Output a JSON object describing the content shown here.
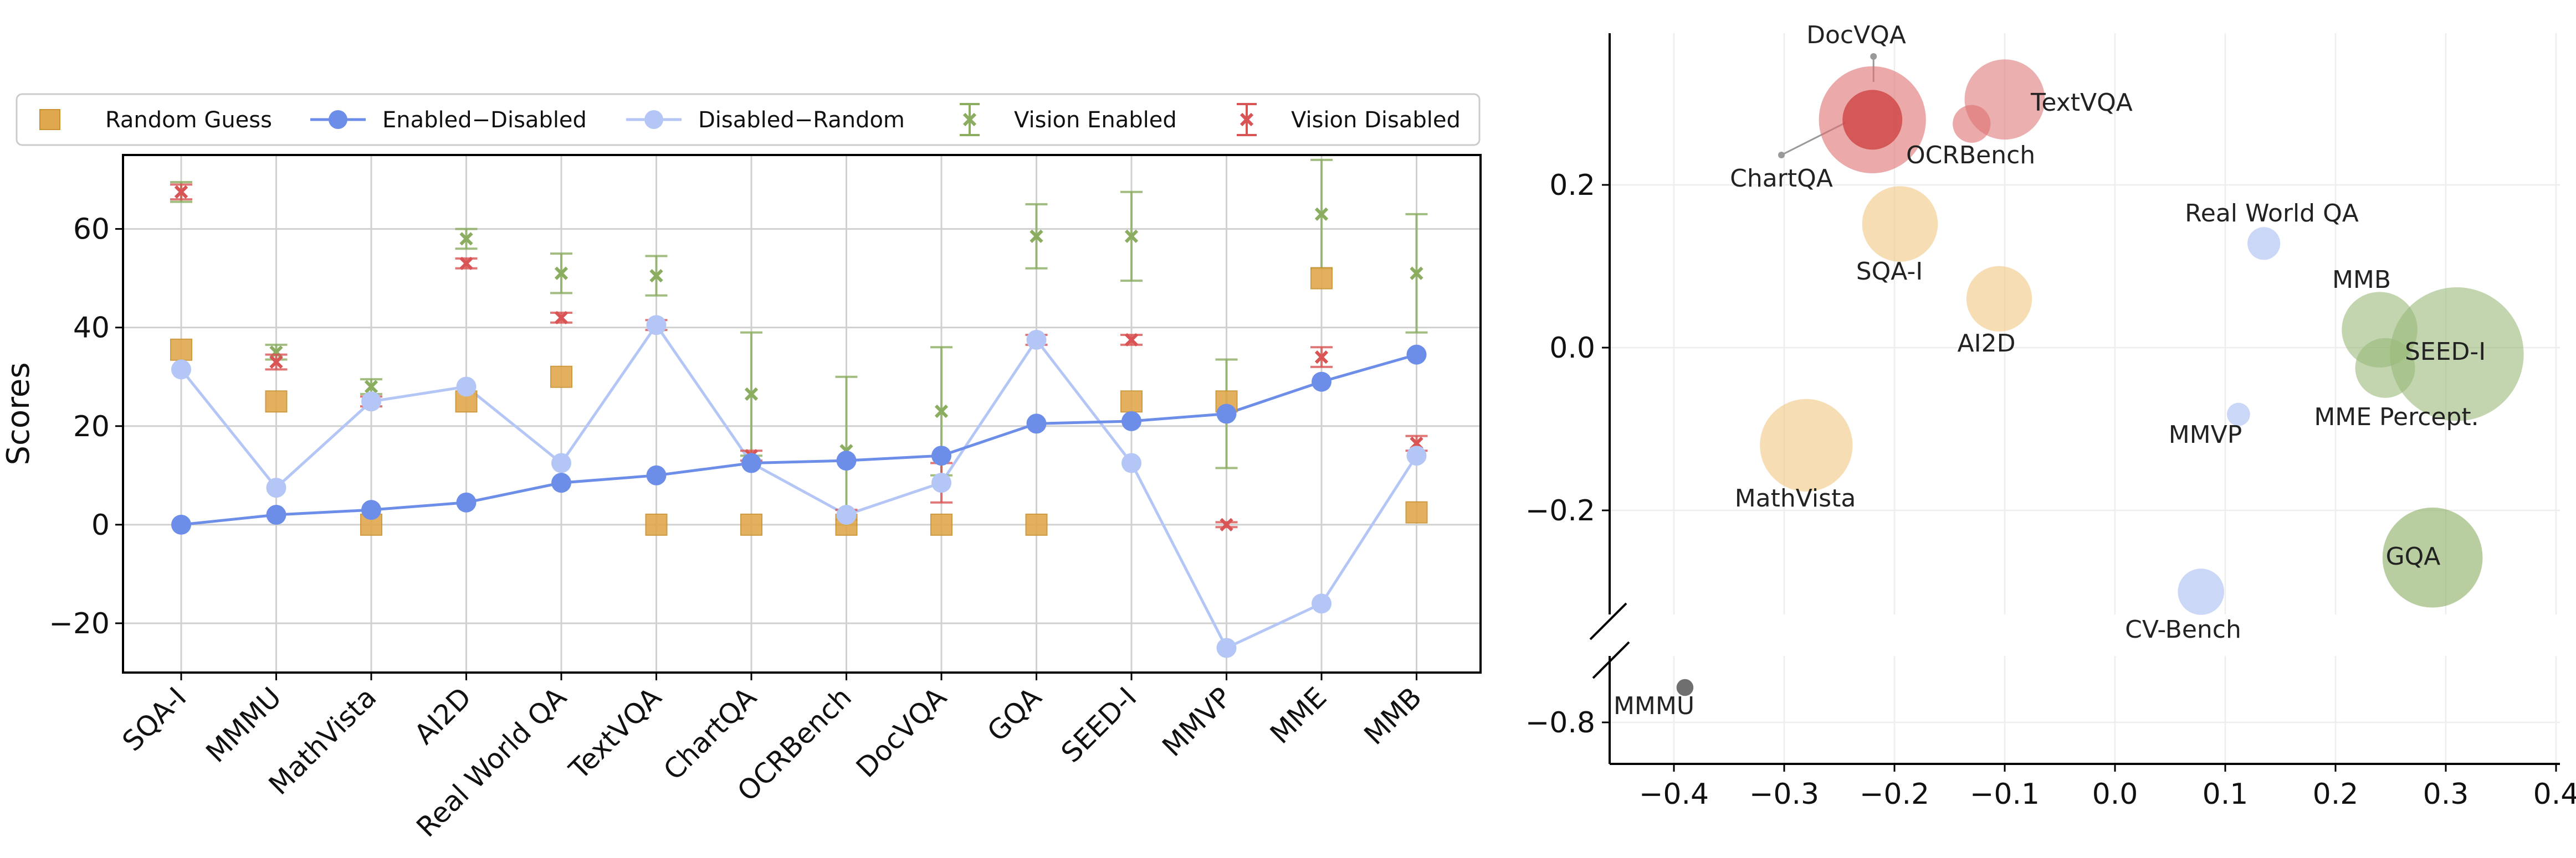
{
  "chart_data": [
    {
      "type": "line",
      "ylabel": "Scores",
      "ylim": [
        -30,
        75
      ],
      "yticks": [
        -20,
        0,
        20,
        40,
        60
      ],
      "grid": true,
      "legend_position": "top",
      "categories": [
        "SQA-I",
        "MMMU",
        "MathVista",
        "AI2D",
        "Real World QA",
        "TextVQA",
        "ChartQA",
        "OCRBench",
        "DocVQA",
        "GQA",
        "SEED-I",
        "MMVP",
        "MME",
        "MMB"
      ],
      "series": [
        {
          "name": "Random Guess",
          "kind": "marker",
          "color": "#e0a84e",
          "values": [
            35.5,
            25,
            0,
            25,
            30,
            0,
            0,
            0,
            0,
            0,
            25,
            25,
            50,
            2.5
          ]
        },
        {
          "name": "Enabled−Disabled",
          "kind": "line",
          "color": "#6d8ee8",
          "values": [
            0,
            2,
            3,
            4.5,
            8.5,
            10,
            12.5,
            13,
            14,
            20.5,
            21,
            22.5,
            29,
            34.5
          ]
        },
        {
          "name": "Disabled−Random",
          "kind": "line",
          "color": "#b3c6f5",
          "values": [
            31.5,
            7.5,
            25,
            28,
            12.5,
            40.5,
            12.5,
            2,
            8.5,
            37.5,
            12.5,
            -25,
            -16,
            14
          ]
        },
        {
          "name": "Vision Enabled",
          "kind": "errorbar",
          "color": "#8aad60",
          "values": [
            67.5,
            35,
            28,
            58,
            51,
            50.5,
            26.5,
            15,
            23,
            58.5,
            58.5,
            22.5,
            63,
            51
          ],
          "err": [
            2,
            1.5,
            1.5,
            2,
            4,
            4,
            12.5,
            15,
            13,
            6.5,
            9,
            11,
            11,
            12
          ]
        },
        {
          "name": "Vision Disabled",
          "kind": "errorbar",
          "color": "#d95555",
          "values": [
            67.5,
            33,
            25,
            53,
            42,
            40.5,
            14,
            2,
            8.5,
            37.5,
            37.5,
            0,
            34,
            16.5
          ],
          "err": [
            1.5,
            1.5,
            1,
            1,
            1,
            1,
            1,
            1,
            4,
            1,
            1,
            0.5,
            2,
            1.5
          ]
        }
      ]
    },
    {
      "type": "scatter",
      "xlim": [
        -0.45,
        0.4
      ],
      "xticks": [
        "−0.4",
        "−0.3",
        "−0.2",
        "−0.1",
        "0.0",
        "0.1",
        "0.2",
        "0.3",
        "0.4"
      ],
      "xtick_values": [
        -0.4,
        -0.3,
        -0.2,
        -0.1,
        0.0,
        0.1,
        0.2,
        0.3,
        0.4
      ],
      "yticks": [
        "0.2",
        "0.0",
        "−0.2",
        "−0.8"
      ],
      "ytick_values": [
        0.2,
        0.0,
        -0.2,
        -0.8
      ],
      "broken_y_axis": true,
      "y_upper_range": [
        -0.35,
        0.38
      ],
      "y_lower_range": [
        -0.86,
        -0.75
      ],
      "grid": true,
      "points": [
        {
          "name": "DocVQA",
          "x": -0.22,
          "y": 0.28,
          "size": 3.2,
          "color": "#e07070"
        },
        {
          "name": "ChartQA",
          "x": -0.22,
          "y": 0.28,
          "size": 1.0,
          "color": "#d04a4a"
        },
        {
          "name": "TextVQA",
          "x": -0.1,
          "y": 0.305,
          "size": 1.8,
          "color": "#e07a7a"
        },
        {
          "name": "OCRBench",
          "x": -0.13,
          "y": 0.275,
          "size": 0.4,
          "color": "#e07070"
        },
        {
          "name": "SQA-I",
          "x": -0.195,
          "y": 0.152,
          "size": 1.6,
          "color": "#f0c680"
        },
        {
          "name": "AI2D",
          "x": -0.105,
          "y": 0.06,
          "size": 1.2,
          "color": "#f0c680"
        },
        {
          "name": "MathVista",
          "x": -0.28,
          "y": -0.12,
          "size": 2.4,
          "color": "#f0c680"
        },
        {
          "name": "Real World QA",
          "x": 0.135,
          "y": 0.128,
          "size": 0.3,
          "color": "#a7bcf2"
        },
        {
          "name": "MMVP",
          "x": 0.112,
          "y": -0.082,
          "size": 0.15,
          "color": "#a7bcf2"
        },
        {
          "name": "CV-Bench",
          "x": 0.078,
          "y": -0.3,
          "size": 0.6,
          "color": "#a7bcf2"
        },
        {
          "name": "MMB",
          "x": 0.24,
          "y": 0.022,
          "size": 1.6,
          "color": "#9ab97a"
        },
        {
          "name": "SEED-I",
          "x": 0.31,
          "y": -0.008,
          "size": 5.0,
          "color": "#9ab97a"
        },
        {
          "name": "MME Percept.",
          "x": 0.245,
          "y": -0.025,
          "size": 1.0,
          "color": "#9ab97a"
        },
        {
          "name": "GQA",
          "x": 0.288,
          "y": -0.258,
          "size": 2.8,
          "color": "#8aad60"
        },
        {
          "name": "MMMU",
          "x": -0.39,
          "y": -0.755,
          "size": 0.08,
          "color": "#6f6f6f"
        }
      ]
    }
  ]
}
